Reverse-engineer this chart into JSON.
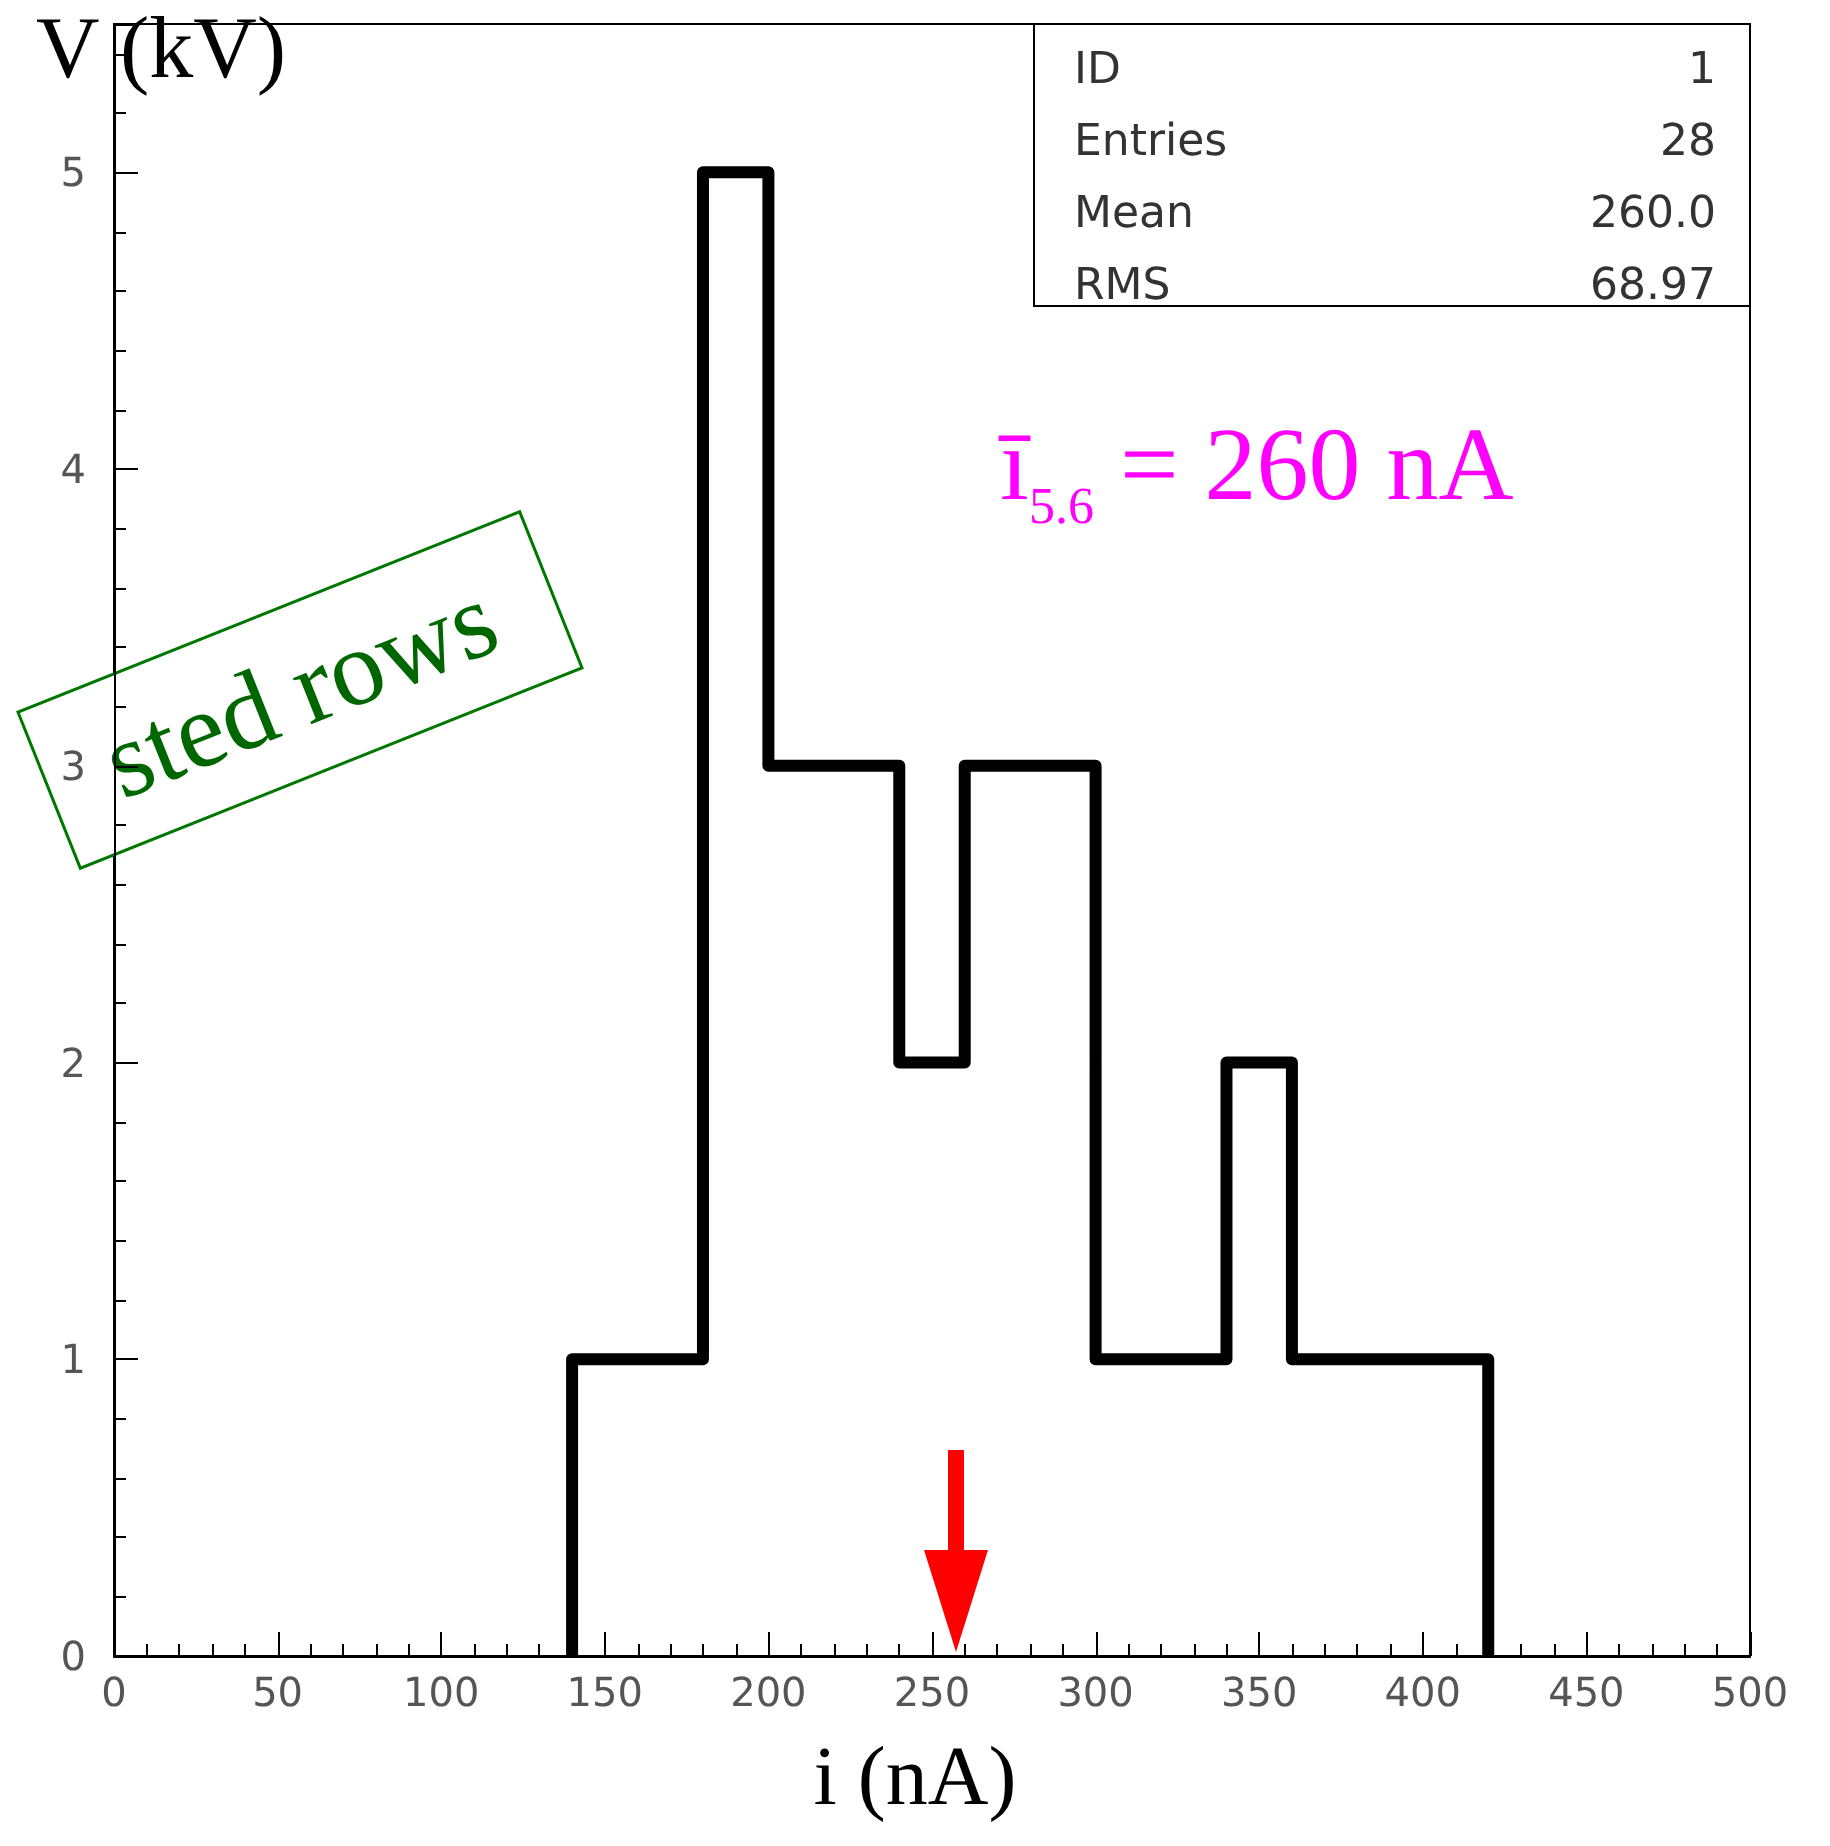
{
  "chart_data": {
    "type": "histogram",
    "xlabel": "i (nA)",
    "ylabel": "V (kV)",
    "bins": [
      140,
      160,
      180,
      200,
      220,
      240,
      260,
      280,
      300,
      320,
      340,
      360,
      380,
      400,
      420
    ],
    "values": [
      1,
      1,
      5,
      3,
      3,
      2,
      3,
      3,
      1,
      1,
      2,
      1,
      1,
      1
    ],
    "color": "#000000",
    "xlim": [
      0,
      500
    ],
    "xticks": [
      0,
      50,
      100,
      150,
      200,
      250,
      300,
      350,
      400,
      450,
      500
    ],
    "ylim": [
      0,
      5.5
    ],
    "yticks": [
      0,
      1,
      2,
      3,
      4,
      5
    ],
    "annotations": [
      "ID",
      "1",
      "Entries",
      "28",
      "Mean",
      "260.0",
      "RMS",
      "68.97",
      "ī$_{5.6}$ = 260 nA",
      "sted rows"
    ]
  }
}
